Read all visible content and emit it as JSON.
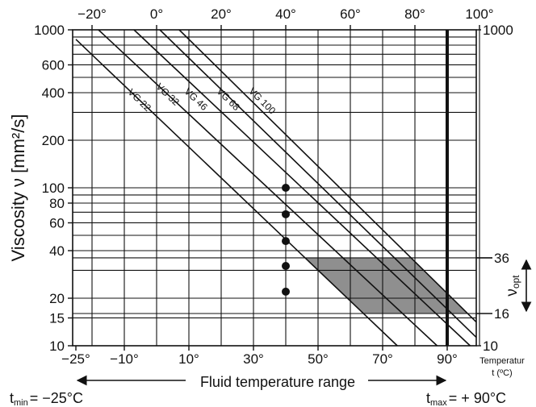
{
  "chart_data": {
    "type": "line",
    "title": "",
    "ylabel": "Viscosity ν [mm²/s]",
    "xlabel": "Fluid temperature range",
    "y_scale": "log",
    "ylim": [
      10,
      1000
    ],
    "xlim": [
      -25,
      100
    ],
    "y_ticks": [
      10,
      15,
      20,
      40,
      60,
      80,
      100,
      200,
      400,
      600,
      1000
    ],
    "y_tick_labels": [
      "10",
      "15",
      "20",
      "40",
      "60",
      "80",
      "100",
      "200",
      "400",
      "600",
      "1000"
    ],
    "y_right_ticks": [
      10,
      1000
    ],
    "y_right_tick_labels": [
      "10",
      "1000"
    ],
    "x_top_ticks": [
      -20,
      0,
      20,
      40,
      60,
      80,
      100
    ],
    "x_top_tick_labels": [
      "−20°",
      "0°",
      "20°",
      "40°",
      "60°",
      "80°",
      "100°"
    ],
    "x_bottom_ticks": [
      -25,
      -10,
      10,
      30,
      50,
      70,
      90
    ],
    "x_bottom_tick_labels": [
      "−25°",
      "−10°",
      "10°",
      "30°",
      "50°",
      "70°",
      "90°"
    ],
    "x_axis_unit_label": [
      "Temperatur",
      "t (ºC)"
    ],
    "grid": true,
    "series": [
      {
        "name": "VG 22",
        "x": [
          -25,
          90
        ],
        "y": [
          870,
          5.0
        ]
      },
      {
        "name": "VG 32",
        "x": [
          -18,
          95
        ],
        "y": [
          1000,
          7.0
        ]
      },
      {
        "name": "VG 46",
        "x": [
          -7,
          100
        ],
        "y": [
          1000,
          8.8
        ]
      },
      {
        "name": "VG 68",
        "x": [
          1,
          100
        ],
        "y": [
          1000,
          10.8
        ]
      },
      {
        "name": "VG 100",
        "x": [
          7,
          100
        ],
        "y": [
          1000,
          13.5
        ]
      }
    ],
    "points": [
      {
        "x": 40,
        "y": 22
      },
      {
        "x": 40,
        "y": 32
      },
      {
        "x": 40,
        "y": 46
      },
      {
        "x": 40,
        "y": 68
      },
      {
        "x": 40,
        "y": 100
      }
    ],
    "optimal_band": {
      "label_main": "ν",
      "label_sub": "opt",
      "low": 16,
      "high": 36,
      "low_label": "16",
      "high_label": "36"
    },
    "t_max": 90,
    "t_min": -25,
    "t_min_label": {
      "main": "t",
      "sub": "min",
      "value": "= −25°C"
    },
    "t_max_label": {
      "main": "t",
      "sub": "max",
      "value": "= + 90°C"
    },
    "colors": {
      "band": "#8f8f8f",
      "lines": "#111111",
      "points": "#111111"
    }
  }
}
